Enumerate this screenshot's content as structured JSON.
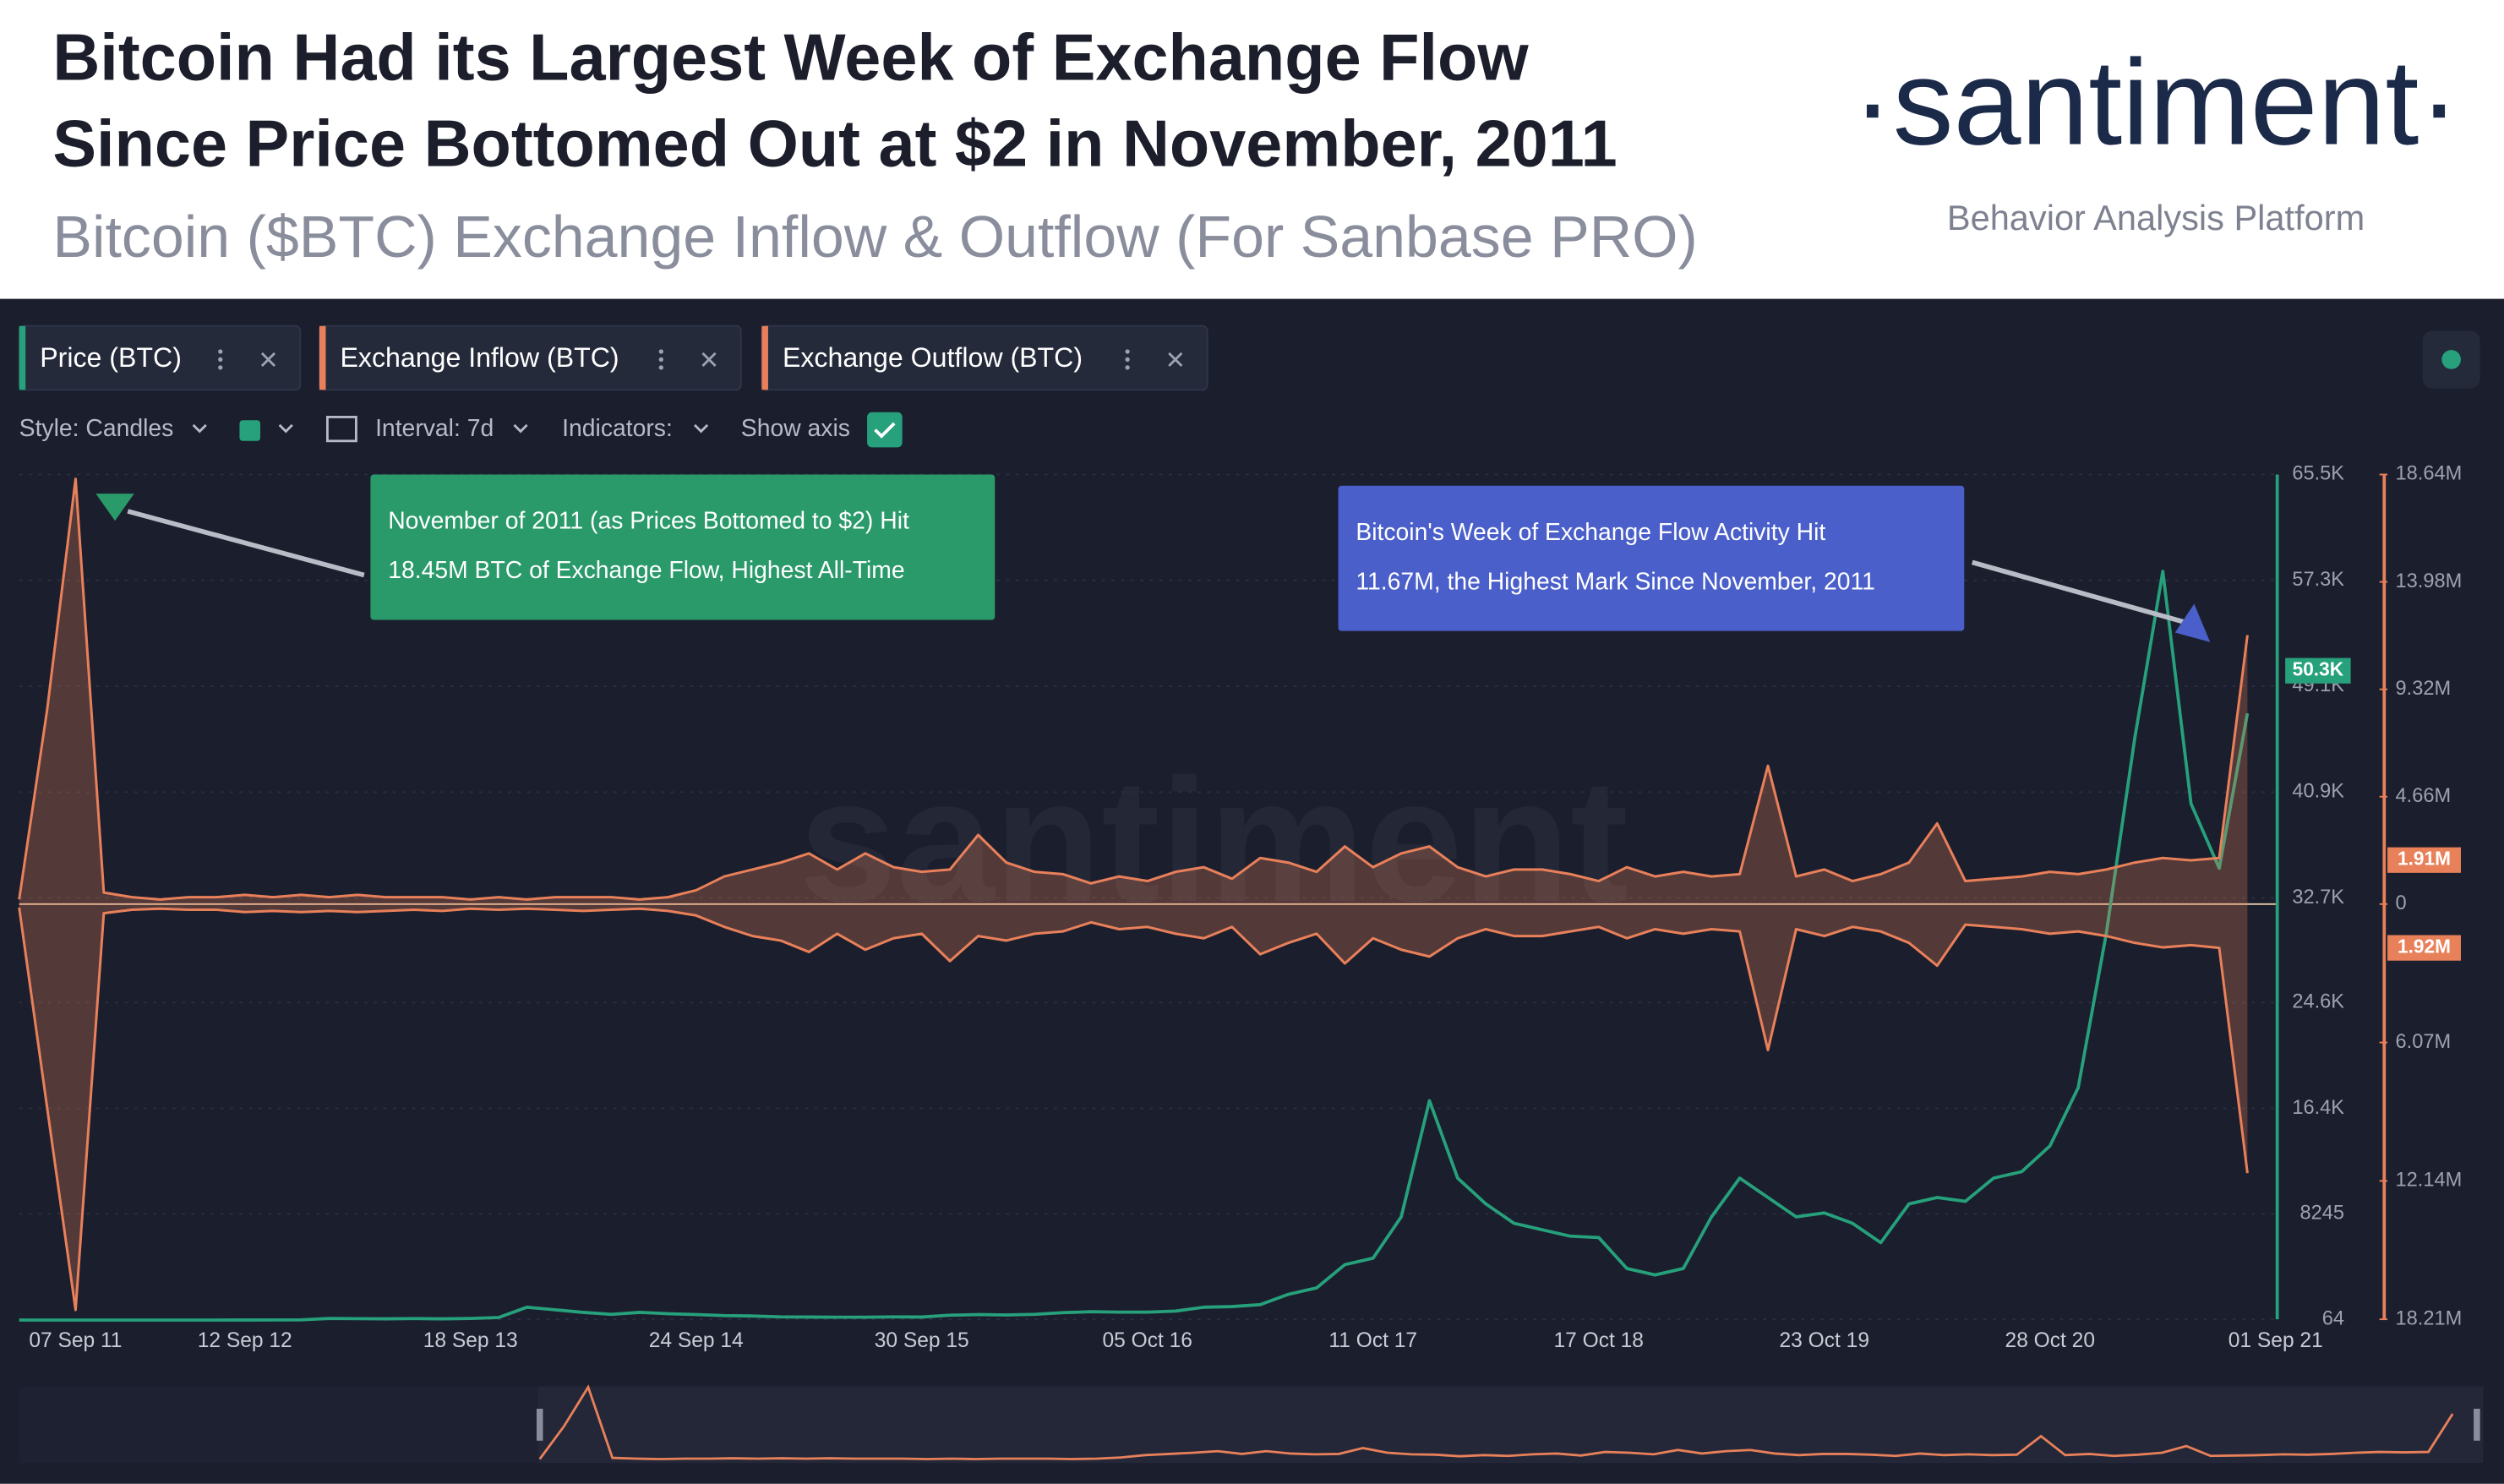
{
  "header": {
    "title_line1": "Bitcoin Had its Largest Week of Exchange Flow",
    "title_line2": "Since Price Bottomed Out at $2 in November, 2011",
    "subtitle": "Bitcoin ($BTC) Exchange Inflow & Outflow (For Sanbase PRO)",
    "logo": "·santiment·",
    "tagline": "Behavior Analysis Platform"
  },
  "toolbar": {
    "style": "Style: Candles",
    "interval": "Interval: 7d",
    "indicators": "Indicators:",
    "show_axis": "Show axis"
  },
  "chart_data": {
    "type": "line",
    "watermark": "santiment",
    "categories": [
      null,
      null,
      "07 Sep 11",
      null,
      null,
      null,
      null,
      null,
      "12 Sep 12",
      null,
      null,
      null,
      null,
      null,
      null,
      null,
      "18 Sep 13",
      null,
      null,
      null,
      null,
      null,
      null,
      null,
      "24 Sep 14",
      null,
      null,
      null,
      null,
      null,
      null,
      null,
      "30 Sep 15",
      null,
      null,
      null,
      null,
      null,
      null,
      null,
      "05 Oct 16",
      null,
      null,
      null,
      null,
      null,
      null,
      null,
      "11 Oct 17",
      null,
      null,
      null,
      null,
      null,
      null,
      null,
      "17 Oct 18",
      null,
      null,
      null,
      null,
      null,
      null,
      null,
      "23 Oct 19",
      null,
      null,
      null,
      null,
      null,
      null,
      null,
      "28 Oct 20",
      null,
      null,
      null,
      null,
      null,
      null,
      null,
      "01 Sep 21"
    ],
    "series": [
      {
        "name": "Price (BTC)",
        "color": "#26a17b",
        "axis": "y",
        "values": [
          5,
          3,
          5,
          5,
          5,
          6,
          5,
          8,
          11,
          13,
          20,
          130,
          110,
          100,
          120,
          100,
          130,
          200,
          1000,
          800,
          600,
          450,
          600,
          500,
          430,
          350,
          320,
          250,
          240,
          230,
          230,
          250,
          240,
          380,
          430,
          400,
          450,
          580,
          650,
          620,
          620,
          700,
          1000,
          1050,
          1200,
          2000,
          2500,
          4300,
          4800,
          8000,
          17000,
          11000,
          9000,
          7500,
          7000,
          6500,
          6400,
          4000,
          3500,
          4000,
          8000,
          11000,
          9500,
          8000,
          8300,
          7500,
          6000,
          9000,
          9500,
          9200,
          11000,
          11500,
          13500,
          18000,
          30000,
          45000,
          58000,
          40000,
          35000,
          47000,
          null
        ],
        "current": {
          "value": 50300,
          "label": "50.3K"
        }
      },
      {
        "name": "Exchange Inflow (BTC)",
        "color": "#e8805a",
        "axis": "y2",
        "values": [
          200000,
          8500000,
          18450000,
          500000,
          300000,
          200000,
          300000,
          300000,
          400000,
          300000,
          400000,
          300000,
          400000,
          300000,
          300000,
          300000,
          200000,
          300000,
          200000,
          300000,
          300000,
          300000,
          200000,
          300000,
          600000,
          1200000,
          1500000,
          1800000,
          2200000,
          1500000,
          2200000,
          1600000,
          1400000,
          1500000,
          3000000,
          1800000,
          1400000,
          1300000,
          900000,
          1200000,
          1000000,
          1400000,
          1600000,
          1100000,
          2000000,
          1800000,
          1400000,
          2500000,
          1600000,
          2200000,
          2500000,
          1600000,
          1200000,
          1500000,
          1500000,
          1300000,
          1000000,
          1600000,
          1200000,
          1400000,
          1200000,
          1300000,
          6000000,
          1200000,
          1500000,
          1000000,
          1300000,
          1800000,
          3500000,
          1000000,
          1100000,
          1200000,
          1400000,
          1300000,
          1500000,
          1800000,
          2000000,
          1900000,
          2000000,
          11670000,
          null
        ],
        "current": {
          "value": 1910000,
          "label": "1.91M"
        }
      },
      {
        "name": "Exchange Outflow (BTC)",
        "color": "#e8805a",
        "axis": "y3",
        "values": [
          150000,
          9000000,
          17800000,
          400000,
          250000,
          200000,
          250000,
          250000,
          350000,
          300000,
          350000,
          300000,
          350000,
          300000,
          250000,
          300000,
          200000,
          250000,
          200000,
          250000,
          300000,
          250000,
          200000,
          300000,
          500000,
          1000000,
          1400000,
          1600000,
          2100000,
          1300000,
          2000000,
          1500000,
          1300000,
          2500000,
          1400000,
          1600000,
          1300000,
          1200000,
          800000,
          1100000,
          1000000,
          1300000,
          1500000,
          1000000,
          2200000,
          1700000,
          1300000,
          2600000,
          1500000,
          2000000,
          2300000,
          1500000,
          1100000,
          1400000,
          1400000,
          1200000,
          1000000,
          1500000,
          1100000,
          1300000,
          1100000,
          1200000,
          6400000,
          1100000,
          1400000,
          1000000,
          1200000,
          1700000,
          2700000,
          900000,
          1000000,
          1100000,
          1300000,
          1200000,
          1400000,
          1700000,
          1900000,
          1800000,
          1920000,
          11800000,
          null
        ],
        "current": {
          "value": 1920000,
          "label": "1.92M"
        }
      }
    ],
    "ylim": [
      64,
      65500
    ],
    "yticks": [
      64,
      8245,
      {
        "value": 16400,
        "label": "16.4K"
      },
      {
        "value": 24600,
        "label": "24.6K"
      },
      {
        "value": 32700,
        "label": "32.7K"
      },
      {
        "value": 40900,
        "label": "40.9K"
      },
      {
        "value": 49100,
        "label": "49.1K"
      },
      {
        "value": 57300,
        "label": "57.3K"
      },
      {
        "value": 65500,
        "label": "65.5K"
      }
    ],
    "y2lim": [
      0,
      18640000
    ],
    "y2ticks": [
      0,
      {
        "value": 4660000,
        "label": "4.66M"
      },
      {
        "value": 9320000,
        "label": "9.32M"
      },
      {
        "value": 13980000,
        "label": "13.98M"
      },
      {
        "value": 18640000,
        "label": "18.64M"
      }
    ],
    "y3lim": [
      0,
      18210000
    ],
    "y3ticks": [
      {
        "value": 6070000,
        "label": "6.07M"
      },
      {
        "value": 12140000,
        "label": "12.14M"
      },
      {
        "value": 18210000,
        "label": "18.21M"
      }
    ],
    "grid": true,
    "annotations": [
      {
        "line1": "November of 2011 (as Prices Bottomed to $2) Hit",
        "line2": "18.45M BTC of Exchange Flow, Highest All-Time",
        "color": "#2a9a6a"
      },
      {
        "line1": "Bitcoin's Week of Exchange Flow Activity Hit",
        "line2": "11.67M, the Highest Mark Since November, 2011",
        "color": "#4a5fc9"
      }
    ]
  }
}
